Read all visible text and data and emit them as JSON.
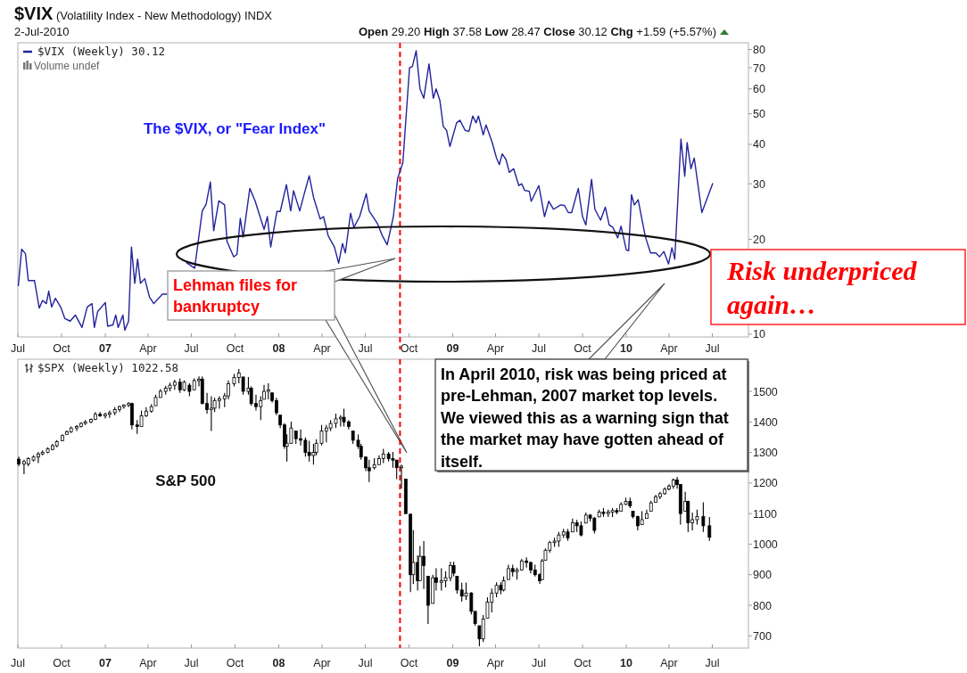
{
  "chart_data": [
    {
      "type": "line",
      "title": "$VIX (Volatility Index - New Methodology) INDX",
      "subtitle": "2-Jul-2010",
      "annotations": [
        "Open 29.20 High 37.58 Low 28.47 Close 30.12 Chg +1.59 (+5.57%)",
        "Volume undef",
        "The $VIX, or \"Fear Index\"",
        "Lehman files for bankruptcy",
        "Risk underpriced again…"
      ],
      "x": [
        "2006-07-02",
        "2006-07-09",
        "2006-07-17",
        "2006-07-23",
        "2006-08-05",
        "2006-08-15",
        "2006-08-22",
        "2006-08-30",
        "2006-09-04",
        "2006-09-10",
        "2006-09-18",
        "2006-09-29",
        "2006-10-08",
        "2006-10-19",
        "2006-10-30",
        "2006-11-13",
        "2006-11-24",
        "2006-12-04",
        "2006-12-09",
        "2006-12-16",
        "2007-01-01",
        "2007-01-06",
        "2007-01-17",
        "2007-01-23",
        "2007-01-28",
        "2007-02-07",
        "2007-02-11",
        "2007-02-19",
        "2007-02-25",
        "2007-03-04",
        "2007-03-10",
        "2007-03-16",
        "2007-03-25",
        "2007-04-04",
        "2007-04-13",
        "2007-05-01",
        "2007-05-11",
        "2007-06-01",
        "2007-06-20",
        "2007-07-08",
        "2007-07-24",
        "2007-08-01",
        "2007-08-10",
        "2007-08-17",
        "2007-08-28",
        "2007-09-09",
        "2007-09-14",
        "2007-09-28",
        "2007-10-05",
        "2007-10-12",
        "2007-10-18",
        "2007-11-01",
        "2007-11-12",
        "2007-12-01",
        "2007-12-08",
        "2007-12-15",
        "2007-12-28",
        "2008-01-04",
        "2008-01-17",
        "2008-01-26",
        "2008-02-01",
        "2008-02-14",
        "2008-02-23",
        "2008-03-05",
        "2008-03-14",
        "2008-03-28",
        "2008-04-04",
        "2008-04-14",
        "2008-04-27",
        "2008-05-06",
        "2008-05-14",
        "2008-05-20",
        "2008-05-31",
        "2008-06-07",
        "2008-06-19",
        "2008-07-03",
        "2008-07-09",
        "2008-07-26",
        "2008-08-06",
        "2008-08-16",
        "2008-08-29",
        "2008-09-07",
        "2008-09-18",
        "2008-10-02",
        "2008-10-08",
        "2008-10-16",
        "2008-10-24",
        "2008-11-01",
        "2008-11-12",
        "2008-11-21",
        "2008-11-27",
        "2008-12-05",
        "2008-12-12",
        "2008-12-19",
        "2008-12-26",
        "2009-01-09",
        "2009-01-16",
        "2009-01-27",
        "2009-02-04",
        "2009-02-12",
        "2009-02-19",
        "2009-02-24",
        "2009-03-06",
        "2009-03-12",
        "2009-03-25",
        "2009-04-03",
        "2009-04-09",
        "2009-04-15",
        "2009-04-23",
        "2009-04-30",
        "2009-05-09",
        "2009-05-20",
        "2009-05-26",
        "2009-06-01",
        "2009-06-11",
        "2009-06-15",
        "2009-07-01",
        "2009-07-13",
        "2009-07-22",
        "2009-08-01",
        "2009-08-16",
        "2009-08-24",
        "2009-09-01",
        "2009-09-08",
        "2009-09-22",
        "2009-10-01",
        "2009-10-08",
        "2009-10-20",
        "2009-10-27",
        "2009-11-08",
        "2009-11-18",
        "2009-11-26",
        "2009-12-04",
        "2009-12-14",
        "2009-12-21",
        "2010-01-01",
        "2010-01-06",
        "2010-01-12",
        "2010-01-18",
        "2010-01-26",
        "2010-02-10",
        "2010-02-21",
        "2010-03-04",
        "2010-03-12",
        "2010-03-21",
        "2010-03-31",
        "2010-04-07",
        "2010-04-13",
        "2010-04-26",
        "2010-05-04",
        "2010-05-09",
        "2010-05-17",
        "2010-05-24",
        "2010-06-09",
        "2010-07-02"
      ],
      "series": [
        {
          "name": "$VIX (Weekly) 30.12",
          "color": "#23239b",
          "values": [
            14.2,
            18.6,
            18,
            14.8,
            14.8,
            12.1,
            12.8,
            12.5,
            13.7,
            12.2,
            13,
            12.2,
            11.2,
            11,
            11.5,
            10.5,
            12.2,
            12.5,
            10.5,
            11.8,
            12.6,
            10.6,
            10.7,
            11.5,
            10.5,
            11.5,
            10.3,
            11,
            18.9,
            14.5,
            17.3,
            14.5,
            15,
            13.1,
            12.5,
            13.4,
            13.4,
            null,
            16.9,
            16.2,
            24.6,
            25.8,
            30.4,
            21.3,
            26.5,
            25.7,
            19.7,
            17.6,
            17.9,
            23.3,
            20.3,
            29,
            26.5,
            21.5,
            23.6,
            18.9,
            24.5,
            24.5,
            29.8,
            24.6,
            28.5,
            24.6,
            27.7,
            31.8,
            27.2,
            23.2,
            23.6,
            20.5,
            18.9,
            16.8,
            19.4,
            18.1,
            24.2,
            21.8,
            23.6,
            27.9,
            24.6,
            22.5,
            20.5,
            19.2,
            23.6,
            31.2,
            35,
            70,
            70.6,
            79.3,
            60,
            56,
            72,
            56,
            60,
            55,
            45.6,
            44.3,
            39.4,
            46.8,
            47.7,
            44.3,
            44,
            49.2,
            46.8,
            49.2,
            42.9,
            46.1,
            40.5,
            36.2,
            34.5,
            37.3,
            35.8,
            32.6,
            33.5,
            29.6,
            30,
            28.6,
            28.4,
            26.4,
            29.6,
            23.6,
            26.4,
            24.9,
            25.7,
            25.6,
            24.3,
            24.3,
            29,
            23.6,
            22.2,
            31,
            24.9,
            23,
            25.3,
            22.2,
            21.8,
            20.2,
            22,
            18.5,
            18.4,
            27.7,
            25.7,
            26.7,
            20.4,
            18.1,
            18.1,
            17.6,
            18.3,
            16.7,
            18.8,
            17.3,
            41.6,
            31.7,
            40.5,
            33.5,
            36.2,
            24.3,
            30.12
          ]
        }
      ],
      "xlim": [
        "2006-07-01",
        "2010-09-15"
      ],
      "xticks": [
        {
          "value": "2006-07-01",
          "label": "Jul"
        },
        {
          "value": "2006-10-01",
          "label": "Oct"
        },
        {
          "value": "2007-01-01",
          "label": "07"
        },
        {
          "value": "2007-04-01",
          "label": "Apr"
        },
        {
          "value": "2007-07-01",
          "label": "Jul"
        },
        {
          "value": "2007-10-01",
          "label": "Oct"
        },
        {
          "value": "2008-01-01",
          "label": "08"
        },
        {
          "value": "2008-04-01",
          "label": "Apr"
        },
        {
          "value": "2008-07-01",
          "label": "Jul"
        },
        {
          "value": "2008-10-01",
          "label": "Oct"
        },
        {
          "value": "2009-01-01",
          "label": "09"
        },
        {
          "value": "2009-04-01",
          "label": "Apr"
        },
        {
          "value": "2009-07-01",
          "label": "Jul"
        },
        {
          "value": "2009-10-01",
          "label": "Oct"
        },
        {
          "value": "2010-01-01",
          "label": "10"
        },
        {
          "value": "2010-04-01",
          "label": "Apr"
        },
        {
          "value": "2010-07-01",
          "label": "Jul"
        }
      ],
      "ylim": [
        9.8,
        84
      ],
      "yticks": [
        10,
        20,
        30,
        40,
        50,
        60,
        70,
        80
      ],
      "log": "y",
      "legend": "top left",
      "ref_lines": [
        {
          "axis": "x",
          "value": "2008-09-12",
          "color": "#ff0000",
          "line_style": "dashed"
        }
      ]
    },
    {
      "type": "candlestick",
      "annotations": [
        "S&P 500",
        "In April 2010, risk was being priced at pre-Lehman, 2007 market top levels. We viewed this as a warning sign that the market may have gotten ahead of itself."
      ],
      "x": [
        "2006-07-03",
        "2006-07-14",
        "2006-07-23",
        "2006-08-03",
        "2006-08-13",
        "2006-08-22",
        "2006-09-02",
        "2006-09-12",
        "2006-09-21",
        "2006-10-03",
        "2006-10-12",
        "2006-10-21",
        "2006-11-02",
        "2006-11-11",
        "2006-11-20",
        "2006-12-02",
        "2006-12-11",
        "2006-12-21",
        "2007-01-01",
        "2007-01-10",
        "2007-01-21",
        "2007-01-31",
        "2007-02-09",
        "2007-02-19",
        "2007-02-26",
        "2007-03-09",
        "2007-03-18",
        "2007-03-28",
        "2007-04-08",
        "2007-04-17",
        "2007-04-27",
        "2007-05-08",
        "2007-05-17",
        "2007-05-27",
        "2007-06-07",
        "2007-06-16",
        "2007-06-27",
        "2007-07-07",
        "2007-07-17",
        "2007-07-24",
        "2007-08-03",
        "2007-08-12",
        "2007-08-19",
        "2007-08-29",
        "2007-09-09",
        "2007-09-17",
        "2007-09-29",
        "2007-10-09",
        "2007-10-18",
        "2007-10-29",
        "2007-11-04",
        "2007-11-14",
        "2007-11-24",
        "2007-12-01",
        "2007-12-10",
        "2007-12-18",
        "2007-12-27",
        "2008-01-04",
        "2008-01-13",
        "2008-01-18",
        "2008-01-27",
        "2008-02-06",
        "2008-02-16",
        "2008-02-26",
        "2008-03-05",
        "2008-03-14",
        "2008-03-20",
        "2008-03-31",
        "2008-04-10",
        "2008-04-19",
        "2008-04-30",
        "2008-05-10",
        "2008-05-17",
        "2008-05-27",
        "2008-06-05",
        "2008-06-16",
        "2008-06-22",
        "2008-07-02",
        "2008-07-09",
        "2008-07-20",
        "2008-07-30",
        "2008-08-08",
        "2008-08-19",
        "2008-08-28",
        "2008-09-05",
        "2008-09-15",
        "2008-09-24",
        "2008-10-04",
        "2008-10-10",
        "2008-10-19",
        "2008-10-24",
        "2008-11-01",
        "2008-11-10",
        "2008-11-20",
        "2008-11-27",
        "2008-12-08",
        "2008-12-17",
        "2008-12-27",
        "2009-01-03",
        "2009-01-10",
        "2009-01-20",
        "2009-01-29",
        "2009-02-09",
        "2009-02-17",
        "2009-02-26",
        "2009-03-06",
        "2009-03-15",
        "2009-03-24",
        "2009-04-03",
        "2009-04-12",
        "2009-04-18",
        "2009-04-28",
        "2009-05-07",
        "2009-05-16",
        "2009-05-26",
        "2009-06-05",
        "2009-06-14",
        "2009-06-23",
        "2009-07-03",
        "2009-07-08",
        "2009-07-15",
        "2009-07-24",
        "2009-08-03",
        "2009-08-12",
        "2009-08-22",
        "2009-08-31",
        "2009-09-10",
        "2009-09-19",
        "2009-09-28",
        "2009-10-08",
        "2009-10-17",
        "2009-10-26",
        "2009-11-05",
        "2009-11-14",
        "2009-11-24",
        "2009-12-03",
        "2009-12-12",
        "2009-12-21",
        "2009-12-31",
        "2010-01-09",
        "2010-01-15",
        "2010-01-25",
        "2010-02-03",
        "2010-02-13",
        "2010-02-22",
        "2010-03-04",
        "2010-03-13",
        "2010-03-23",
        "2010-04-01",
        "2010-04-10",
        "2010-04-18",
        "2010-04-25",
        "2010-05-05",
        "2010-05-11",
        "2010-05-20",
        "2010-05-30",
        "2010-06-12",
        "2010-06-25"
      ],
      "series": [
        {
          "name": "$SPX (Weekly) 1022.58",
          "color": "#000000",
          "ohlc": [
            [
              1278,
              1286,
              1255,
              1262
            ],
            [
              1262,
              1276,
              1229,
              1270
            ],
            [
              1262,
              1284,
              1255,
              1280
            ],
            [
              1275,
              1291,
              1270,
              1285
            ],
            [
              1285,
              1302,
              1265,
              1295
            ],
            [
              1295,
              1307,
              1291,
              1300
            ],
            [
              1300,
              1317,
              1297,
              1312
            ],
            [
              1310,
              1328,
              1307,
              1322
            ],
            [
              1322,
              1340,
              1317,
              1335
            ],
            [
              1338,
              1359,
              1338,
              1355
            ],
            [
              1359,
              1372,
              1359,
              1368
            ],
            [
              1368,
              1385,
              1364,
              1380
            ],
            [
              1380,
              1390,
              1370,
              1385
            ],
            [
              1385,
              1399,
              1382,
              1395
            ],
            [
              1395,
              1406,
              1390,
              1400
            ],
            [
              1400,
              1411,
              1396,
              1408
            ],
            [
              1408,
              1432,
              1406,
              1425
            ],
            [
              1425,
              1432,
              1416,
              1420
            ],
            [
              1420,
              1430,
              1411,
              1425
            ],
            [
              1425,
              1437,
              1413,
              1430
            ],
            [
              1430,
              1448,
              1422,
              1440
            ],
            [
              1440,
              1453,
              1432,
              1450
            ],
            [
              1450,
              1458,
              1443,
              1455
            ],
            [
              1455,
              1465,
              1448,
              1460
            ],
            [
              1460,
              1463,
              1375,
              1390
            ],
            [
              1390,
              1406,
              1361,
              1385
            ],
            [
              1385,
              1437,
              1385,
              1420
            ],
            [
              1420,
              1448,
              1416,
              1435
            ],
            [
              1435,
              1458,
              1430,
              1450
            ],
            [
              1453,
              1489,
              1453,
              1480
            ],
            [
              1480,
              1507,
              1479,
              1500
            ],
            [
              1500,
              1518,
              1489,
              1510
            ],
            [
              1510,
              1528,
              1500,
              1520
            ],
            [
              1520,
              1538,
              1505,
              1530
            ],
            [
              1530,
              1542,
              1495,
              1505
            ],
            [
              1505,
              1536,
              1500,
              1530
            ],
            [
              1520,
              1526,
              1484,
              1500
            ],
            [
              1505,
              1542,
              1505,
              1535
            ],
            [
              1535,
              1549,
              1516,
              1540
            ],
            [
              1540,
              1549,
              1458,
              1460
            ],
            [
              1460,
              1495,
              1427,
              1440
            ],
            [
              1440,
              1484,
              1370,
              1445
            ],
            [
              1445,
              1479,
              1432,
              1470
            ],
            [
              1470,
              1484,
              1443,
              1475
            ],
            [
              1475,
              1495,
              1448,
              1485
            ],
            [
              1485,
              1536,
              1474,
              1525
            ],
            [
              1525,
              1557,
              1516,
              1545
            ],
            [
              1545,
              1573,
              1526,
              1560
            ],
            [
              1547,
              1547,
              1489,
              1500
            ],
            [
              1500,
              1547,
              1489,
              1510
            ],
            [
              1510,
              1516,
              1453,
              1460
            ],
            [
              1460,
              1489,
              1437,
              1450
            ],
            [
              1450,
              1484,
              1406,
              1470
            ],
            [
              1474,
              1521,
              1474,
              1500
            ],
            [
              1500,
              1526,
              1474,
              1505
            ],
            [
              1495,
              1495,
              1463,
              1470
            ],
            [
              1470,
              1479,
              1422,
              1430
            ],
            [
              1422,
              1422,
              1380,
              1390
            ],
            [
              1390,
              1396,
              1312,
              1320
            ],
            [
              1320,
              1359,
              1270,
              1330
            ],
            [
              1330,
              1401,
              1328,
              1380
            ],
            [
              1370,
              1370,
              1328,
              1345
            ],
            [
              1345,
              1375,
              1323,
              1340
            ],
            [
              1340,
              1349,
              1286,
              1300
            ],
            [
              1300,
              1338,
              1270,
              1290
            ],
            [
              1290,
              1328,
              1260,
              1300
            ],
            [
              1300,
              1343,
              1291,
              1330
            ],
            [
              1330,
              1390,
              1323,
              1370
            ],
            [
              1370,
              1390,
              1333,
              1380
            ],
            [
              1380,
              1406,
              1370,
              1395
            ],
            [
              1395,
              1427,
              1380,
              1410
            ],
            [
              1410,
              1422,
              1385,
              1415
            ],
            [
              1415,
              1443,
              1385,
              1400
            ],
            [
              1400,
              1406,
              1375,
              1385
            ],
            [
              1370,
              1370,
              1328,
              1340
            ],
            [
              1340,
              1359,
              1312,
              1320
            ],
            [
              1320,
              1328,
              1276,
              1285
            ],
            [
              1285,
              1286,
              1239,
              1250
            ],
            [
              1250,
              1276,
              1203,
              1240
            ],
            [
              1250,
              1281,
              1244,
              1260
            ],
            [
              1260,
              1291,
              1260,
              1280
            ],
            [
              1280,
              1312,
              1265,
              1295
            ],
            [
              1295,
              1302,
              1270,
              1280
            ],
            [
              1280,
              1302,
              1250,
              1275
            ],
            [
              1275,
              1276,
              1213,
              1250
            ],
            [
              1250,
              1260,
              1182,
              1255
            ],
            [
              1213,
              1213,
              1098,
              1100
            ],
            [
              1098,
              1098,
              843,
              900
            ],
            [
              900,
              1046,
              869,
              940
            ],
            [
              940,
              963,
              848,
              880
            ],
            [
              880,
              994,
              879,
              960
            ],
            [
              960,
              1010,
              853,
              930
            ],
            [
              895,
              895,
              739,
              800
            ],
            [
              806,
              900,
              806,
              890
            ],
            [
              890,
              921,
              848,
              875
            ],
            [
              875,
              921,
              848,
              880
            ],
            [
              880,
              911,
              858,
              890
            ],
            [
              890,
              942,
              879,
              930
            ],
            [
              930,
              942,
              895,
              905
            ],
            [
              895,
              895,
              838,
              850
            ],
            [
              850,
              874,
              812,
              830
            ],
            [
              830,
              874,
              817,
              840
            ],
            [
              840,
              843,
              770,
              780
            ],
            [
              780,
              780,
              733,
              740
            ],
            [
              733,
              733,
              666,
              690
            ],
            [
              690,
              768,
              680,
              755
            ],
            [
              758,
              826,
              758,
              810
            ],
            [
              810,
              855,
              777,
              840
            ],
            [
              840,
              875,
              826,
              865
            ],
            [
              865,
              875,
              836,
              850
            ],
            [
              850,
              894,
              845,
              880
            ],
            [
              884,
              933,
              884,
              920
            ],
            [
              920,
              933,
              894,
              910
            ],
            [
              910,
              923,
              884,
              915
            ],
            [
              915,
              952,
              913,
              945
            ],
            [
              945,
              957,
              923,
              940
            ],
            [
              940,
              943,
              904,
              915
            ],
            [
              915,
              933,
              894,
              900
            ],
            [
              900,
              904,
              870,
              880
            ],
            [
              884,
              952,
              884,
              945
            ],
            [
              947,
              986,
              947,
              980
            ],
            [
              980,
              1011,
              972,
              1005
            ],
            [
              1005,
              1021,
              991,
              1010
            ],
            [
              1010,
              1040,
              991,
              1030
            ],
            [
              1030,
              1050,
              1020,
              1040
            ],
            [
              1040,
              1050,
              1011,
              1020
            ],
            [
              1040,
              1084,
              1040,
              1070
            ],
            [
              1070,
              1079,
              1040,
              1060
            ],
            [
              1060,
              1074,
              1025,
              1030
            ],
            [
              1069,
              1103,
              1069,
              1095
            ],
            [
              1095,
              1098,
              1074,
              1085
            ],
            [
              1085,
              1089,
              1035,
              1045
            ],
            [
              1089,
              1113,
              1089,
              1105
            ],
            [
              1105,
              1118,
              1089,
              1100
            ],
            [
              1100,
              1113,
              1089,
              1105
            ],
            [
              1105,
              1118,
              1089,
              1110
            ],
            [
              1110,
              1118,
              1098,
              1105
            ],
            [
              1108,
              1137,
              1108,
              1130
            ],
            [
              1130,
              1152,
              1128,
              1140
            ],
            [
              1140,
              1152,
              1118,
              1125
            ],
            [
              1108,
              1108,
              1084,
              1090
            ],
            [
              1090,
              1093,
              1045,
              1060
            ],
            [
              1064,
              1108,
              1064,
              1080
            ],
            [
              1084,
              1113,
              1084,
              1100
            ],
            [
              1108,
              1142,
              1108,
              1135
            ],
            [
              1137,
              1162,
              1137,
              1155
            ],
            [
              1155,
              1171,
              1147,
              1165
            ],
            [
              1165,
              1186,
              1162,
              1180
            ],
            [
              1180,
              1196,
              1176,
              1190
            ],
            [
              1190,
              1215,
              1181,
              1210
            ],
            [
              1210,
              1220,
              1181,
              1195
            ],
            [
              1195,
              1196,
              1064,
              1100
            ],
            [
              1108,
              1171,
              1108,
              1140
            ],
            [
              1140,
              1142,
              1040,
              1070
            ],
            [
              1070,
              1103,
              1045,
              1080
            ],
            [
              1080,
              1113,
              1064,
              1090
            ],
            [
              1090,
              1137,
              1040,
              1060
            ],
            [
              1060,
              1089,
              1011,
              1022.58
            ]
          ]
        }
      ],
      "xlim": [
        "2006-07-01",
        "2010-09-15"
      ],
      "xticks": [
        {
          "value": "2006-07-01",
          "label": "Jul"
        },
        {
          "value": "2006-10-01",
          "label": "Oct"
        },
        {
          "value": "2007-01-01",
          "label": "07"
        },
        {
          "value": "2007-04-01",
          "label": "Apr"
        },
        {
          "value": "2007-07-01",
          "label": "Jul"
        },
        {
          "value": "2007-10-01",
          "label": "Oct"
        },
        {
          "value": "2008-01-01",
          "label": "08"
        },
        {
          "value": "2008-04-01",
          "label": "Apr"
        },
        {
          "value": "2008-07-01",
          "label": "Jul"
        },
        {
          "value": "2008-10-01",
          "label": "Oct"
        },
        {
          "value": "2009-01-01",
          "label": "09"
        },
        {
          "value": "2009-04-01",
          "label": "Apr"
        },
        {
          "value": "2009-07-01",
          "label": "Jul"
        },
        {
          "value": "2009-10-01",
          "label": "Oct"
        },
        {
          "value": "2010-01-01",
          "label": "10"
        },
        {
          "value": "2010-04-01",
          "label": "Apr"
        },
        {
          "value": "2010-07-01",
          "label": "Jul"
        }
      ],
      "ylim": [
        660,
        1605
      ],
      "yticks": [
        700,
        800,
        900,
        1000,
        1100,
        1200,
        1300,
        1400,
        1500
      ],
      "legend": "top left",
      "ref_lines": [
        {
          "axis": "x",
          "value": "2008-09-12",
          "color": "#ff0000",
          "line_style": "dashed"
        }
      ]
    }
  ]
}
